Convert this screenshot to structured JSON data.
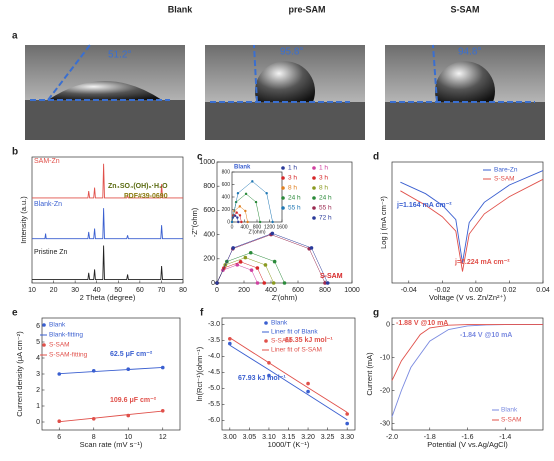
{
  "panel_a": {
    "label": "a",
    "columns": [
      "Blank",
      "pre-SAM",
      "S-SAM"
    ],
    "angles": [
      "51.2°",
      "95.8°",
      "94.8°"
    ]
  },
  "chart_data": [
    {
      "type": "line",
      "panel": "b",
      "xlabel": "2 Theta (degree)",
      "ylabel": "Intensity (a.u.)",
      "xlim": [
        10,
        80
      ],
      "xticks": [
        10,
        20,
        30,
        40,
        50,
        60,
        70,
        80
      ],
      "ylim": [
        -1,
        36
      ],
      "annotations": [
        {
          "text": "Zn₄SO₄(OH)₆·H₂O",
          "color": "#5a6a10"
        },
        {
          "text": "PDF#39-0690",
          "color": "#8a7a10"
        }
      ],
      "x": [
        10,
        16,
        16.3,
        16.6,
        20,
        35.9,
        36.3,
        36.7,
        38.6,
        39,
        39.4,
        42.8,
        43.2,
        43.6,
        53.9,
        54.3,
        54.7,
        69.7,
        70.1,
        70.5,
        80
      ],
      "series": [
        {
          "name": "SAM-Zn",
          "color": "#e0504a",
          "values": [
            24,
            24,
            24,
            24,
            24,
            24,
            26,
            24,
            24,
            27,
            24,
            24,
            34,
            24,
            24,
            24.6,
            24,
            24,
            28,
            24,
            24
          ]
        },
        {
          "name": "Blank-Zn",
          "color": "#3a5fd0",
          "values": [
            12,
            12,
            13.5,
            12,
            12,
            12,
            14,
            12,
            12,
            15,
            12,
            12,
            21,
            12,
            12,
            13,
            12,
            12,
            16,
            12,
            12
          ]
        },
        {
          "name": "Pristine Zn",
          "color": "#222222",
          "values": [
            0,
            0,
            0,
            0,
            0,
            0,
            2,
            0,
            0,
            3,
            0,
            0,
            10,
            0,
            0,
            1.5,
            0,
            0,
            4,
            0,
            0
          ]
        }
      ]
    },
    {
      "type": "scatter",
      "panel": "c",
      "xlabel": "Z'(ohm)",
      "ylabel": "-Z''(ohm)",
      "xlim": [
        0,
        1000
      ],
      "xticks": [
        0,
        200,
        400,
        600,
        800,
        1000
      ],
      "ylim": [
        0,
        1000
      ],
      "yticks": [
        0,
        200,
        400,
        600,
        800,
        1000
      ],
      "annotations": [
        {
          "text": "S-SAM",
          "color": "#d62728"
        }
      ],
      "series": [
        {
          "name": "1 h",
          "color": "#d040a0",
          "x": [
            0,
            44,
            150,
            256,
            300
          ],
          "values": [
            0,
            106,
            150,
            106,
            0
          ]
        },
        {
          "name": "3 h",
          "color": "#d62728",
          "x": [
            0,
            51,
            175,
            299,
            350
          ],
          "values": [
            0,
            124,
            175,
            124,
            0
          ]
        },
        {
          "name": "8 h",
          "color": "#8a9a20",
          "x": [
            0,
            61,
            210,
            359,
            420
          ],
          "values": [
            0,
            149,
            210,
            149,
            0
          ]
        },
        {
          "name": "24 h",
          "color": "#2a8a3a",
          "x": [
            0,
            73,
            250,
            427,
            500
          ],
          "values": [
            0,
            177,
            250,
            177,
            0
          ]
        },
        {
          "name": "55 h",
          "color": "#9a2a50",
          "x": [
            0,
            117,
            400,
            683,
            800
          ],
          "values": [
            0,
            283,
            400,
            283,
            0
          ]
        },
        {
          "name": "72 h",
          "color": "#2a3a9a",
          "x": [
            0,
            120,
            410,
            700,
            820
          ],
          "values": [
            0,
            290,
            410,
            290,
            0
          ]
        }
      ]
    },
    {
      "type": "scatter",
      "xlabel": "Z'(ohm)",
      "xlim": [
        0,
        1600
      ],
      "xticks": [
        0,
        400,
        800,
        1200,
        1600
      ],
      "ylim": [
        0,
        800
      ],
      "yticks": [
        0,
        200,
        400,
        600,
        800
      ],
      "annotations": [
        {
          "text": "Blank",
          "color": "#3a5fd0"
        }
      ],
      "series": [
        {
          "name": "1 h",
          "color": "#2a3a9a",
          "x": [
            0,
            29,
            100,
            171,
            200
          ],
          "values": [
            0,
            71,
            100,
            71,
            0
          ]
        },
        {
          "name": "3 h",
          "color": "#d62728",
          "x": [
            0,
            44,
            150,
            256,
            300
          ],
          "values": [
            0,
            106,
            150,
            106,
            0
          ]
        },
        {
          "name": "8 h",
          "color": "#e08020",
          "x": [
            0,
            73,
            250,
            427,
            500
          ],
          "values": [
            0,
            177,
            250,
            177,
            0
          ]
        },
        {
          "name": "24 h",
          "color": "#2a8a3a",
          "x": [
            0,
            131,
            450,
            769,
            900
          ],
          "values": [
            0,
            319,
            450,
            319,
            0
          ]
        },
        {
          "name": "55 h",
          "color": "#1f77b4",
          "x": [
            0,
            190,
            650,
            1110,
            1300
          ],
          "values": [
            0,
            460,
            650,
            460,
            0
          ]
        }
      ]
    },
    {
      "type": "line",
      "panel": "d",
      "xlabel": "Voltage (V vs. Zn/Zn²⁺)",
      "ylabel": "Log j (mA cm⁻²)",
      "xlim": [
        -0.05,
        0.04
      ],
      "xticks": [
        -0.04,
        -0.02,
        {
          "value": 0,
          "label": "0.00"
        },
        0.02,
        0.04
      ],
      "ylim": [
        -3,
        1.2
      ],
      "annotations": [
        {
          "text": "j=1.164 mA cm⁻²",
          "color": "#3a5fd0"
        },
        {
          "text": "j=0.224 mA cm⁻²",
          "color": "#e0504a"
        }
      ],
      "x": [
        -0.045,
        -0.03,
        -0.02,
        -0.012,
        -0.008,
        -0.004,
        0.005,
        0.02,
        0.04
      ],
      "series": [
        {
          "name": "Bare-Zn",
          "color": "#3a5fd0",
          "values": [
            0.5,
            0.1,
            -0.3,
            -0.8,
            -2.3,
            -0.9,
            -0.2,
            0.4,
            0.9
          ]
        },
        {
          "name": "S-SAM",
          "color": "#e0504a",
          "values": [
            0.2,
            -0.3,
            -0.7,
            -1.2,
            -2.6,
            -1.3,
            -0.6,
            0,
            0.6
          ]
        }
      ]
    },
    {
      "type": "scatter",
      "panel": "e",
      "xlabel": "Scan rate (mV s⁻¹)",
      "ylabel": "Current density (μA cm⁻²)",
      "xlim": [
        5,
        13
      ],
      "xticks": [
        6,
        8,
        10,
        12
      ],
      "ylim": [
        -0.5,
        6.5
      ],
      "yticks": [
        0,
        1,
        2,
        3,
        4,
        5,
        6
      ],
      "annotations": [
        {
          "text": "62.5 μF cm⁻²",
          "color": "#3a5fd0"
        },
        {
          "text": "109.6 μF cm⁻²",
          "color": "#e0504a"
        }
      ],
      "x": [
        6,
        8,
        10,
        12
      ],
      "series": [
        {
          "name": "Blank",
          "color": "#3a5fd0",
          "style": "markers",
          "values": [
            3.0,
            3.2,
            3.3,
            3.4
          ]
        },
        {
          "name": "Blank-fitting",
          "color": "#3a5fd0",
          "style": "line",
          "values": [
            3.02,
            3.15,
            3.28,
            3.41
          ]
        },
        {
          "name": "S-SAM",
          "color": "#e0504a",
          "style": "markers",
          "values": [
            0.05,
            0.2,
            0.4,
            0.7
          ]
        },
        {
          "name": "S-SAM-fitting",
          "color": "#e0504a",
          "style": "line",
          "values": [
            0.02,
            0.24,
            0.46,
            0.68
          ]
        }
      ]
    },
    {
      "type": "scatter",
      "panel": "f",
      "xlabel": "1000/T (K⁻¹)",
      "ylabel": "ln(Rct⁻¹)(ohm⁻¹)",
      "xlim": [
        2.98,
        3.32
      ],
      "xticks": [
        {
          "value": 3,
          "label": "3.00"
        },
        3.05,
        {
          "value": 3.1,
          "label": "3.10"
        },
        3.15,
        {
          "value": 3.2,
          "label": "3.20"
        },
        3.25,
        {
          "value": 3.3,
          "label": "3.30"
        }
      ],
      "ylim": [
        -6.3,
        -2.8
      ],
      "yticks": [
        {
          "value": -3,
          "label": "-3.0"
        },
        -3.5,
        {
          "value": -4,
          "label": "-4.0"
        },
        -4.5,
        {
          "value": -5,
          "label": "-5.0"
        },
        -5.5,
        {
          "value": -6,
          "label": "-6.0"
        }
      ],
      "annotations": [
        {
          "text": "67.93 kJ mol⁻¹",
          "color": "#3a5fd0"
        },
        {
          "text": "65.35 kJ mol⁻¹",
          "color": "#e0504a"
        }
      ],
      "x": [
        3.0,
        3.1,
        3.2,
        3.3
      ],
      "series": [
        {
          "name": "Blank",
          "color": "#3a5fd0",
          "style": "markers",
          "values": [
            -3.6,
            -4.6,
            -5.1,
            -6.1
          ]
        },
        {
          "name": "Liner fit of Blank",
          "color": "#3a5fd0",
          "style": "line",
          "values": [
            -3.65,
            -4.42,
            -5.2,
            -5.98
          ]
        },
        {
          "name": "S-SAM",
          "color": "#e0504a",
          "style": "markers",
          "values": [
            -3.45,
            -4.2,
            -4.85,
            -5.8
          ]
        },
        {
          "name": "Liner fit of S-SAM",
          "color": "#e0504a",
          "style": "line",
          "values": [
            -3.42,
            -4.2,
            -4.98,
            -5.75
          ]
        }
      ]
    },
    {
      "type": "line",
      "panel": "g",
      "xlabel": "Potential (V vs.Ag/AgCl)",
      "ylabel": "Current (mA)",
      "xlim": [
        -2.0,
        -1.2
      ],
      "xticks": [
        {
          "value": -2,
          "label": "-2.0"
        },
        -1.8,
        -1.6,
        -1.4
      ],
      "ylim": [
        -32,
        2
      ],
      "yticks": [
        0,
        -10,
        -20,
        -30
      ],
      "annotations": [
        {
          "text": "-1.88 V @10 mA",
          "color": "#e0504a"
        },
        {
          "text": "-1.84 V @10 mA",
          "color": "#7a8ae0"
        }
      ],
      "x": [
        -2.0,
        -1.95,
        -1.9,
        -1.85,
        -1.8,
        -1.7,
        -1.6,
        -1.5,
        -1.4,
        -1.3,
        -1.2
      ],
      "series": [
        {
          "name": "Blank",
          "color": "#7a8ae0",
          "values": [
            -28,
            -20,
            -13,
            -9,
            -5,
            -1.5,
            -0.4,
            -0.1,
            0,
            0,
            0
          ]
        },
        {
          "name": "S-SAM",
          "color": "#e0504a",
          "values": [
            -17,
            -11,
            -7,
            -3,
            -1,
            -0.2,
            0,
            0,
            0,
            0,
            0
          ]
        }
      ]
    }
  ]
}
